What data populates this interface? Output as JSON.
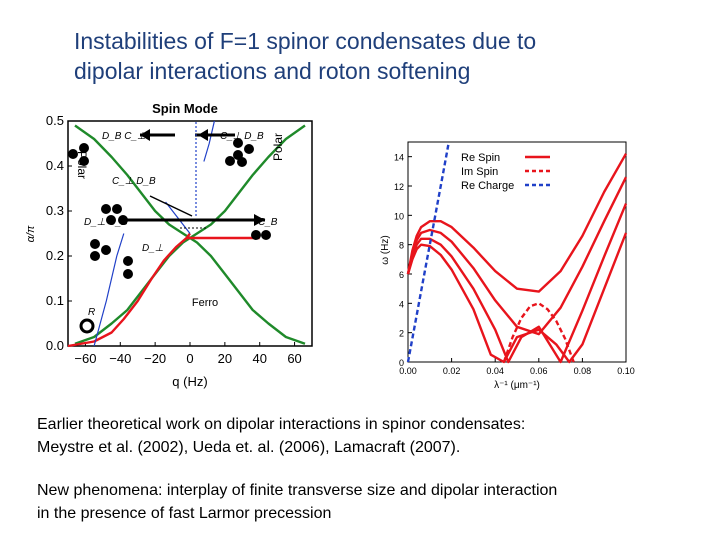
{
  "slide": {
    "title_line1": "Instabilities of F=1 spinor condensates due to",
    "title_line2": "dipolar  interactions and roton softening",
    "paragraph1_line1": "Earlier theoretical work on dipolar interactions in spinor condensates:",
    "paragraph1_line2": "Meystre et al. (2002), Ueda et. al. (2006), Lamacraft (2007).",
    "paragraph2_line1": "New phenomena: interplay of finite transverse size and dipolar interaction",
    "paragraph2_line2": "in the presence of fast Larmor precession"
  },
  "colors": {
    "title": "#1f3f7a",
    "green": "#1f8a2a",
    "red": "#e8141c",
    "blue": "#2040c8",
    "black": "#000000"
  },
  "chart_data": [
    {
      "type": "line",
      "title": "Spin Mode",
      "xlabel": "q (Hz)",
      "ylabel": "α/π",
      "xlim": [
        -70,
        70
      ],
      "ylim": [
        0,
        0.5
      ],
      "x_ticks": [
        "−60",
        "−40",
        "−20",
        "0",
        "20",
        "40",
        "60"
      ],
      "y_ticks": [
        "0.0",
        "0.1",
        "0.2",
        "0.3",
        "0.4",
        "0.5"
      ],
      "region_labels": [
        "Polar",
        "Polar",
        "Ferro",
        "R"
      ],
      "point_labels": [
        "D_B C_⊥",
        "C_⊥ D_B",
        "C_⊥ D_B",
        "D_⊥ C_B",
        "C_B",
        "D_⊥"
      ],
      "series": [
        {
          "color": "green",
          "x": [
            -66,
            -55,
            -45,
            -36,
            -28,
            -20,
            -12,
            -4,
            0,
            4,
            12,
            20,
            28,
            36,
            45,
            55,
            66
          ],
          "y": [
            0.49,
            0.46,
            0.42,
            0.38,
            0.34,
            0.3,
            0.27,
            0.25,
            0.24,
            0.23,
            0.2,
            0.16,
            0.12,
            0.08,
            0.05,
            0.02,
            0.005
          ]
        },
        {
          "color": "green",
          "x": [
            -66,
            -55,
            -45,
            -36,
            -28,
            -20,
            -12,
            -4,
            0,
            4,
            12,
            20,
            28,
            36,
            45,
            55,
            66
          ],
          "y": [
            0.005,
            0.02,
            0.05,
            0.08,
            0.12,
            0.16,
            0.2,
            0.23,
            0.24,
            0.25,
            0.27,
            0.3,
            0.34,
            0.38,
            0.42,
            0.46,
            0.49
          ]
        },
        {
          "color": "red",
          "x": [
            -70,
            -55,
            -45,
            -38,
            -30,
            -22,
            -15,
            -8,
            -2,
            0
          ],
          "y": [
            0.0,
            0.01,
            0.03,
            0.06,
            0.1,
            0.15,
            0.19,
            0.22,
            0.24,
            0.25
          ]
        },
        {
          "color": "red",
          "x": [
            -2,
            40
          ],
          "y": [
            0.24,
            0.24
          ]
        },
        {
          "color": "blue",
          "x": [
            -55,
            -48,
            -42,
            -38
          ],
          "y": [
            0.0,
            0.1,
            0.2,
            0.25
          ]
        },
        {
          "color": "blue",
          "x": [
            -14,
            -4,
            0
          ],
          "y": [
            0.32,
            0.27,
            0.25
          ]
        },
        {
          "color": "blue",
          "x": [
            8,
            11,
            14
          ],
          "y": [
            0.41,
            0.45,
            0.5
          ]
        }
      ]
    },
    {
      "type": "line",
      "title": "",
      "xlabel": "λ⁻¹ (μm⁻¹)",
      "ylabel": "ω (Hz)",
      "xlim": [
        0,
        0.1
      ],
      "ylim": [
        0,
        15
      ],
      "x_ticks": [
        "0.00",
        "0.02",
        "0.04",
        "0.06",
        "0.08",
        "0.10"
      ],
      "y_ticks": [
        "0",
        "2",
        "4",
        "6",
        "8",
        "10",
        "12",
        "14"
      ],
      "legend": [
        "Re Spin",
        "Im Spin",
        "Re Charge"
      ],
      "legend_position": "top-right",
      "series": [
        {
          "name": "Re Spin",
          "color": "red",
          "dash": "solid",
          "x": [
            0.0,
            0.002,
            0.004,
            0.006,
            0.01,
            0.015,
            0.02,
            0.03,
            0.04,
            0.05,
            0.06,
            0.07,
            0.08,
            0.09,
            0.1
          ],
          "y": [
            6.0,
            7.6,
            8.6,
            9.2,
            9.6,
            9.6,
            9.2,
            7.8,
            6.2,
            5.0,
            4.8,
            6.2,
            8.6,
            11.6,
            14.2
          ]
        },
        {
          "name": "Re Spin",
          "color": "red",
          "dash": "solid",
          "x": [
            0.0,
            0.002,
            0.004,
            0.006,
            0.01,
            0.015,
            0.02,
            0.03,
            0.04,
            0.05,
            0.06,
            0.07,
            0.08,
            0.09,
            0.1
          ],
          "y": [
            6.0,
            7.4,
            8.3,
            8.8,
            9.0,
            8.8,
            8.2,
            6.4,
            4.2,
            2.4,
            1.9,
            3.7,
            6.5,
            9.6,
            12.6
          ]
        },
        {
          "name": "Re Spin",
          "color": "red",
          "dash": "solid",
          "x": [
            0.0,
            0.002,
            0.004,
            0.006,
            0.01,
            0.015,
            0.02,
            0.03,
            0.04,
            0.046,
            0.052,
            0.06,
            0.07,
            0.08,
            0.09,
            0.1
          ],
          "y": [
            6.0,
            7.2,
            8.0,
            8.4,
            8.4,
            8.0,
            7.2,
            5.0,
            2.2,
            0.0,
            1.7,
            2.4,
            0.0,
            3.5,
            7.2,
            10.8
          ]
        },
        {
          "name": "Re Spin",
          "color": "red",
          "dash": "solid",
          "x": [
            0.0,
            0.002,
            0.004,
            0.006,
            0.01,
            0.015,
            0.02,
            0.03,
            0.038,
            0.044,
            0.05,
            0.06,
            0.068,
            0.074,
            0.08,
            0.09,
            0.1
          ],
          "y": [
            6.0,
            7.0,
            7.7,
            8.0,
            7.9,
            7.3,
            6.3,
            3.6,
            0.5,
            0.0,
            1.7,
            2.2,
            1.2,
            0.0,
            1.2,
            5.0,
            8.8
          ]
        },
        {
          "name": "Im Spin",
          "color": "red",
          "dash": "dashed",
          "x": [
            0.044,
            0.048,
            0.052,
            0.056,
            0.06,
            0.064,
            0.068,
            0.072,
            0.076
          ],
          "y": [
            0.0,
            1.7,
            3.0,
            3.8,
            4.0,
            3.6,
            2.8,
            1.6,
            0.0
          ]
        },
        {
          "name": "Re Charge",
          "color": "blue",
          "dash": "dashed",
          "x": [
            0.0,
            0.004,
            0.008,
            0.012,
            0.016,
            0.0185
          ],
          "y": [
            0.0,
            3.2,
            6.4,
            9.6,
            12.8,
            14.8
          ]
        }
      ]
    }
  ]
}
